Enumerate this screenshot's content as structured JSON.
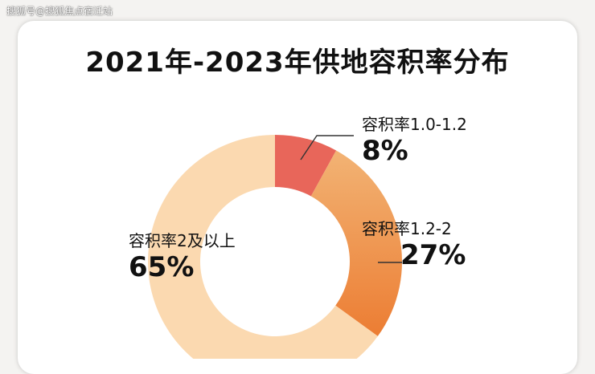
{
  "watermark": "搜狐号@搜狐焦点宿迁站",
  "chart_data": {
    "type": "pie",
    "title": "2021年-2023年供地容积率分布",
    "donut": true,
    "start_angle_deg": 0,
    "direction": "clockwise",
    "slices": [
      {
        "label": "容积率1.0-1.2",
        "value": 8,
        "display": "8%",
        "color": "#e8665a"
      },
      {
        "label": "容积率1.2-2",
        "value": 27,
        "display": "27%",
        "color": "#f0a458"
      },
      {
        "label": "容积率2及以上",
        "value": 65,
        "display": "65%",
        "color": "#fbd9b0"
      }
    ]
  }
}
